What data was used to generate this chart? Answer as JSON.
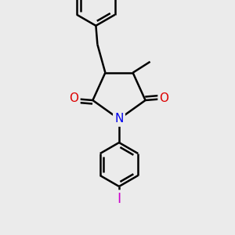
{
  "bg_color": "#ebebeb",
  "atom_colors": {
    "C": "#000000",
    "N": "#0000ee",
    "O": "#dd0000",
    "I": "#cc00cc"
  },
  "bond_color": "#000000",
  "bond_width": 1.8,
  "font_size_atom": 11,
  "font_size_small": 9
}
